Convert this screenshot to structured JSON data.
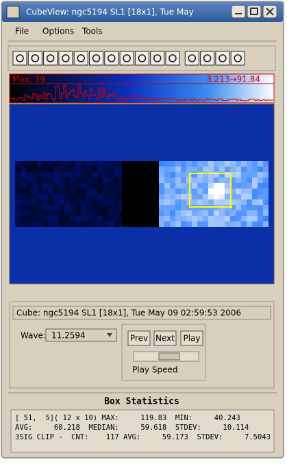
{
  "window": {
    "title": "CubeView: ngc5194 SL1 [18x1], Tue May"
  },
  "menu": [
    "File",
    "Options",
    "Tools"
  ],
  "histogram": {
    "max_label": "Max: 19",
    "range_label": "3.213→91.84"
  },
  "cube_info": "Cube: ngc5194 SL1 [18x1], Tue May 09 02:59:53 2006",
  "wave": {
    "label": "Wave:",
    "value": "11.2594"
  },
  "buttons": [
    "Prev",
    "Next",
    "Play"
  ],
  "slider_label": "Play Speed",
  "stats": {
    "title": "Box Statistics",
    "lines": [
      "[ 51,  5]( 12 x 10) MAX:     119.83  MIN:     40.243",
      "AVG:     60.218  MEDIAN:     59.618  STDEV:     10.114",
      "3SIG CLIP -  CNT:    117 AVG:     59.173  STDEV:     7.5043"
    ]
  }
}
